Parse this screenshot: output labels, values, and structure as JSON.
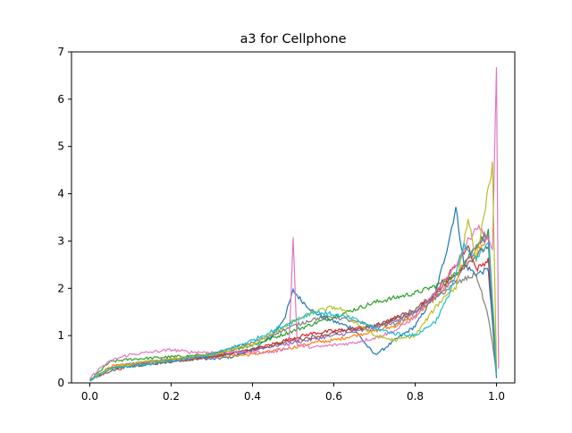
{
  "chart_data": {
    "type": "line",
    "title": "a3 for Cellphone",
    "xlabel": "",
    "ylabel": "",
    "xlim": [
      -0.045,
      1.045
    ],
    "ylim": [
      0,
      7
    ],
    "xticks": [
      0.0,
      0.2,
      0.4,
      0.6,
      0.8,
      1.0
    ],
    "xtick_labels": [
      "0.0",
      "0.2",
      "0.4",
      "0.6",
      "0.8",
      "1.0"
    ],
    "yticks": [
      0,
      1,
      2,
      3,
      4,
      5,
      6,
      7
    ],
    "ytick_labels": [
      "0",
      "1",
      "2",
      "3",
      "4",
      "5",
      "6",
      "7"
    ],
    "grid": false,
    "legend": "none",
    "series": [
      {
        "color": "#1f77b4",
        "x": [
          0.0,
          0.05,
          0.1,
          0.15,
          0.2,
          0.25,
          0.3,
          0.35,
          0.4,
          0.45,
          0.48,
          0.5,
          0.52,
          0.55,
          0.6,
          0.65,
          0.68,
          0.7,
          0.72,
          0.75,
          0.8,
          0.85,
          0.88,
          0.9,
          0.92,
          0.95,
          0.98,
          1.0
        ],
        "y": [
          0.05,
          0.3,
          0.4,
          0.45,
          0.5,
          0.55,
          0.5,
          0.55,
          0.7,
          1.0,
          1.4,
          1.95,
          1.75,
          1.5,
          1.3,
          1.15,
          0.8,
          0.6,
          0.7,
          0.9,
          1.2,
          1.9,
          2.9,
          3.7,
          2.5,
          2.3,
          2.4,
          0.1
        ]
      },
      {
        "color": "#ff7f0e",
        "x": [
          0.0,
          0.05,
          0.1,
          0.15,
          0.2,
          0.3,
          0.4,
          0.5,
          0.55,
          0.6,
          0.65,
          0.7,
          0.75,
          0.8,
          0.85,
          0.9,
          0.95,
          0.98,
          1.0
        ],
        "y": [
          0.05,
          0.35,
          0.4,
          0.45,
          0.5,
          0.55,
          0.6,
          0.75,
          0.85,
          0.9,
          1.0,
          1.1,
          1.2,
          1.4,
          1.8,
          2.3,
          2.8,
          3.0,
          0.2
        ]
      },
      {
        "color": "#2ca02c",
        "x": [
          0.0,
          0.05,
          0.1,
          0.2,
          0.3,
          0.4,
          0.5,
          0.6,
          0.65,
          0.7,
          0.75,
          0.8,
          0.85,
          0.9,
          0.95,
          0.98,
          1.0
        ],
        "y": [
          0.05,
          0.45,
          0.5,
          0.55,
          0.6,
          0.8,
          1.1,
          1.4,
          1.55,
          1.7,
          1.8,
          1.9,
          2.05,
          2.3,
          2.9,
          3.2,
          0.3
        ]
      },
      {
        "color": "#d62728",
        "x": [
          0.0,
          0.05,
          0.1,
          0.2,
          0.3,
          0.4,
          0.5,
          0.55,
          0.6,
          0.7,
          0.8,
          0.85,
          0.9,
          0.93,
          0.95,
          0.98,
          1.0
        ],
        "y": [
          0.05,
          0.3,
          0.35,
          0.45,
          0.55,
          0.7,
          0.95,
          1.05,
          1.1,
          1.2,
          1.5,
          1.9,
          2.5,
          2.9,
          2.4,
          2.6,
          0.2
        ]
      },
      {
        "color": "#9467bd",
        "x": [
          0.0,
          0.05,
          0.1,
          0.2,
          0.3,
          0.4,
          0.5,
          0.6,
          0.7,
          0.8,
          0.85,
          0.9,
          0.95,
          0.98,
          1.0
        ],
        "y": [
          0.05,
          0.3,
          0.4,
          0.5,
          0.55,
          0.7,
          0.85,
          1.0,
          1.15,
          1.5,
          1.8,
          2.2,
          2.9,
          3.1,
          0.2
        ]
      },
      {
        "color": "#8c564b",
        "x": [
          0.0,
          0.05,
          0.1,
          0.2,
          0.3,
          0.4,
          0.5,
          0.6,
          0.7,
          0.8,
          0.85,
          0.9,
          0.95,
          0.98,
          1.0
        ],
        "y": [
          0.05,
          0.25,
          0.35,
          0.45,
          0.55,
          0.7,
          0.9,
          1.05,
          1.2,
          1.55,
          1.9,
          2.3,
          2.7,
          2.9,
          0.2
        ]
      },
      {
        "color": "#e377c2",
        "x": [
          0.0,
          0.03,
          0.06,
          0.1,
          0.15,
          0.2,
          0.25,
          0.3,
          0.35,
          0.4,
          0.45,
          0.49,
          0.5,
          0.51,
          0.55,
          0.6,
          0.65,
          0.7,
          0.75,
          0.8,
          0.85,
          0.9,
          0.93,
          0.95,
          0.97,
          0.99,
          1.0,
          1.005
        ],
        "y": [
          0.1,
          0.35,
          0.5,
          0.6,
          0.65,
          0.7,
          0.65,
          0.65,
          0.65,
          0.65,
          0.65,
          0.75,
          3.1,
          0.8,
          0.75,
          0.8,
          0.85,
          0.95,
          1.1,
          1.4,
          1.9,
          2.5,
          3.0,
          3.3,
          3.2,
          2.8,
          6.7,
          0.3
        ]
      },
      {
        "color": "#7f7f7f",
        "x": [
          0.0,
          0.05,
          0.1,
          0.2,
          0.3,
          0.4,
          0.5,
          0.55,
          0.6,
          0.65,
          0.7,
          0.75,
          0.8,
          0.85,
          0.9,
          0.95,
          0.98,
          1.0
        ],
        "y": [
          0.05,
          0.3,
          0.4,
          0.5,
          0.6,
          0.85,
          1.2,
          1.35,
          1.4,
          1.3,
          1.2,
          1.25,
          1.5,
          1.8,
          2.1,
          2.3,
          1.4,
          0.2
        ]
      },
      {
        "color": "#bcbd22",
        "x": [
          0.0,
          0.05,
          0.1,
          0.2,
          0.3,
          0.4,
          0.5,
          0.55,
          0.6,
          0.62,
          0.65,
          0.7,
          0.75,
          0.8,
          0.85,
          0.88,
          0.9,
          0.93,
          0.95,
          0.97,
          0.99,
          1.0
        ],
        "y": [
          0.05,
          0.3,
          0.4,
          0.5,
          0.6,
          0.8,
          1.3,
          1.5,
          1.6,
          1.55,
          1.3,
          1.0,
          0.9,
          1.0,
          1.6,
          1.9,
          2.0,
          3.5,
          2.6,
          3.6,
          4.6,
          0.3
        ]
      },
      {
        "color": "#17becf",
        "x": [
          0.0,
          0.05,
          0.1,
          0.2,
          0.3,
          0.4,
          0.5,
          0.55,
          0.6,
          0.65,
          0.7,
          0.75,
          0.8,
          0.85,
          0.88,
          0.9,
          0.92,
          0.95,
          0.98,
          1.0
        ],
        "y": [
          0.05,
          0.3,
          0.35,
          0.45,
          0.6,
          0.9,
          1.3,
          1.5,
          1.45,
          1.35,
          1.15,
          1.05,
          1.0,
          1.3,
          1.8,
          2.3,
          2.9,
          2.6,
          3.0,
          0.2
        ]
      }
    ]
  }
}
